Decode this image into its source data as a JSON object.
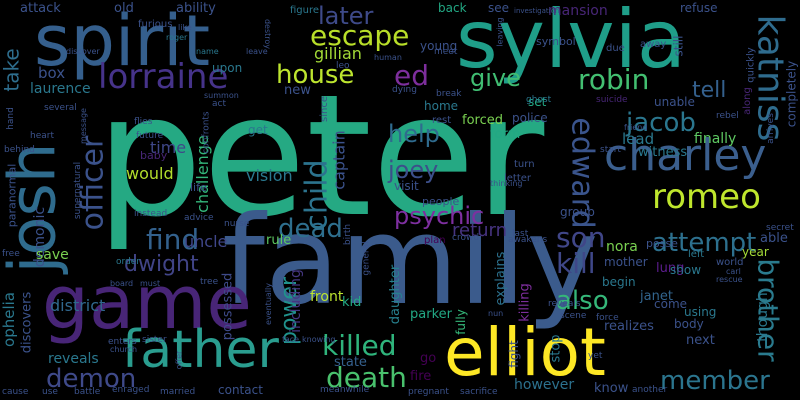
{
  "background": "#000000",
  "palette": {
    "indigo": "#482677",
    "darkblue": "#3b528b",
    "blue": "#3a5f8e",
    "teal": "#2a788e",
    "cyan": "#21918c",
    "green": "#22a884",
    "lime": "#7ad151",
    "yellow": "#fde725"
  },
  "words": [
    {
      "text": "peter",
      "color": "#25a983"
    },
    {
      "text": "family",
      "color": "#3b5b8c"
    },
    {
      "text": "sylvia",
      "color": "#1f9e89"
    },
    {
      "text": "spirit",
      "color": "#355f8d"
    },
    {
      "text": "game",
      "color": "#482577"
    },
    {
      "text": "josh",
      "color": "#2f6c8e"
    },
    {
      "text": "elliot",
      "color": "#fde725"
    },
    {
      "text": "father",
      "color": "#2a9d8f"
    },
    {
      "text": "charley",
      "color": "#3b5f8e"
    },
    {
      "text": "katniss",
      "color": "#2f6c8e"
    },
    {
      "text": "lorraine",
      "color": "#46338a"
    },
    {
      "text": "romeo",
      "color": "#bfe62d"
    },
    {
      "text": "brother",
      "color": "#2a7b8e"
    },
    {
      "text": "escape",
      "color": "#b8de29"
    },
    {
      "text": "house",
      "color": "#bde52f"
    },
    {
      "text": "robin",
      "color": "#43bf71"
    },
    {
      "text": "edward",
      "color": "#3a548c"
    },
    {
      "text": "officer",
      "color": "#3b528b"
    },
    {
      "text": "child",
      "color": "#2c738e"
    },
    {
      "text": "later",
      "color": "#3e4a89"
    },
    {
      "text": "death",
      "color": "#49c16d"
    },
    {
      "text": "killed",
      "color": "#2fb47c"
    },
    {
      "text": "son",
      "color": "#404688"
    },
    {
      "text": "kill",
      "color": "#3f4788"
    },
    {
      "text": "find",
      "color": "#33618d"
    },
    {
      "text": "dead",
      "color": "#2e6f8e"
    },
    {
      "text": "psychic",
      "color": "#7e2fa0"
    },
    {
      "text": "attempt",
      "color": "#2d708e"
    },
    {
      "text": "member",
      "color": "#2b758e"
    },
    {
      "text": "also",
      "color": "#35b779"
    },
    {
      "text": "demon",
      "color": "#3f4a8a"
    },
    {
      "text": "joey",
      "color": "#3c4f8a"
    },
    {
      "text": "jacob",
      "color": "#2a768e"
    },
    {
      "text": "help",
      "color": "#2f6b8e"
    },
    {
      "text": "give",
      "color": "#40bd72"
    },
    {
      "text": "tell",
      "color": "#34608d"
    },
    {
      "text": "dwight",
      "color": "#414487"
    },
    {
      "text": "power",
      "color": "#20928c"
    },
    {
      "text": "ed",
      "color": "#7d2e9c"
    },
    {
      "text": "gillian",
      "color": "#a3da37"
    },
    {
      "text": "take",
      "color": "#2e6e8e"
    },
    {
      "text": "vision",
      "color": "#2a788e"
    },
    {
      "text": "return",
      "color": "#46337f"
    },
    {
      "text": "district",
      "color": "#31688e"
    },
    {
      "text": "uncle",
      "color": "#40478a"
    },
    {
      "text": "challenge",
      "color": "#33b67a"
    },
    {
      "text": "captain",
      "color": "#3b528b"
    },
    {
      "text": "time",
      "color": "#3f4788"
    },
    {
      "text": "would",
      "color": "#b2dd2c"
    },
    {
      "text": "janet",
      "color": "#32658e"
    },
    {
      "text": "ophelia",
      "color": "#2a788e"
    },
    {
      "text": "demonic",
      "color": "#3b528b"
    },
    {
      "text": "reveals",
      "color": "#2a788e"
    },
    {
      "text": "possessed",
      "color": "#3e4a89"
    },
    {
      "text": "including",
      "color": "#453781"
    },
    {
      "text": "daughter",
      "color": "#27808e"
    },
    {
      "text": "explains",
      "color": "#2c718e"
    },
    {
      "text": "contact",
      "color": "#3b528b"
    },
    {
      "text": "state",
      "color": "#35608d"
    },
    {
      "text": "front",
      "color": "#bde52f"
    },
    {
      "text": "lung",
      "color": "#5d1d8f"
    },
    {
      "text": "rule",
      "color": "#5ec962"
    },
    {
      "text": "save",
      "color": "#7ad151"
    },
    {
      "text": "box",
      "color": "#3b528b"
    },
    {
      "text": "laurence",
      "color": "#2a788e"
    },
    {
      "text": "discovers",
      "color": "#3b528b"
    },
    {
      "text": "kid",
      "color": "#22a884"
    },
    {
      "text": "parker",
      "color": "#22a884"
    },
    {
      "text": "fully",
      "color": "#35b779"
    },
    {
      "text": "killing",
      "color": "#7d2e9c"
    },
    {
      "text": "stop",
      "color": "#2a788e"
    },
    {
      "text": "fight",
      "color": "#3b528b"
    },
    {
      "text": "however",
      "color": "#2c718e"
    },
    {
      "text": "know",
      "color": "#3b528b"
    },
    {
      "text": "fire",
      "color": "#440154"
    },
    {
      "text": "go",
      "color": "#440154"
    },
    {
      "text": "lead",
      "color": "#2a788e"
    },
    {
      "text": "form",
      "color": "#22a884"
    },
    {
      "text": "finally",
      "color": "#5ec962"
    },
    {
      "text": "witness",
      "color": "#2a788e"
    },
    {
      "text": "nora",
      "color": "#7ad151"
    },
    {
      "text": "mother",
      "color": "#3b528b"
    },
    {
      "text": "show",
      "color": "#2a788e"
    },
    {
      "text": "year",
      "color": "#a3da37"
    },
    {
      "text": "able",
      "color": "#3b528b"
    },
    {
      "text": "posse",
      "color": "#3b528b"
    },
    {
      "text": "left",
      "color": "#2a788e"
    },
    {
      "text": "world",
      "color": "#3b528b"
    },
    {
      "text": "begin",
      "color": "#2a788e"
    },
    {
      "text": "come",
      "color": "#3b528b"
    },
    {
      "text": "using",
      "color": "#2a788e"
    },
    {
      "text": "body",
      "color": "#3b528b"
    },
    {
      "text": "realizes",
      "color": "#3b528b"
    },
    {
      "text": "next",
      "color": "#3b528b"
    },
    {
      "text": "though",
      "color": "#2a788e"
    },
    {
      "text": "completely",
      "color": "#3b528b"
    },
    {
      "text": "refuse",
      "color": "#3b528b"
    },
    {
      "text": "mansion",
      "color": "#482677"
    },
    {
      "text": "attack",
      "color": "#3b528b"
    },
    {
      "text": "old",
      "color": "#3b528b"
    },
    {
      "text": "ability",
      "color": "#3b528b"
    },
    {
      "text": "figure",
      "color": "#2a788e"
    },
    {
      "text": "back",
      "color": "#22a884"
    },
    {
      "text": "see",
      "color": "#3b528b"
    },
    {
      "text": "upon",
      "color": "#2a788e"
    },
    {
      "text": "new",
      "color": "#3b528b"
    },
    {
      "text": "set",
      "color": "#22a884"
    },
    {
      "text": "police",
      "color": "#3b528b"
    },
    {
      "text": "forced",
      "color": "#7ad151"
    },
    {
      "text": "home",
      "color": "#2a788e"
    },
    {
      "text": "rest",
      "color": "#3b528b"
    },
    {
      "text": "unable",
      "color": "#3b528b"
    },
    {
      "text": "furious",
      "color": "#3b528b"
    },
    {
      "text": "roger",
      "color": "#2a788e"
    },
    {
      "text": "like",
      "color": "#3b528b"
    },
    {
      "text": "name",
      "color": "#2a788e"
    },
    {
      "text": "leave",
      "color": "#3b528b"
    },
    {
      "text": "discover",
      "color": "#3b528b"
    },
    {
      "text": "young",
      "color": "#3b528b"
    },
    {
      "text": "meet",
      "color": "#3b528b"
    },
    {
      "text": "due",
      "color": "#3b528b"
    },
    {
      "text": "away",
      "color": "#3b528b"
    },
    {
      "text": "still",
      "color": "#3b528b"
    },
    {
      "text": "symbol",
      "color": "#3b528b"
    },
    {
      "text": "ghost",
      "color": "#2a788e"
    },
    {
      "text": "dying",
      "color": "#3b528b"
    },
    {
      "text": "break",
      "color": "#3b528b"
    },
    {
      "text": "suicide",
      "color": "#482677"
    },
    {
      "text": "along",
      "color": "#482677"
    },
    {
      "text": "quickly",
      "color": "#3b528b"
    },
    {
      "text": "visit",
      "color": "#3b528b"
    },
    {
      "text": "people",
      "color": "#3b528b"
    },
    {
      "text": "plan",
      "color": "#440154"
    },
    {
      "text": "thinking",
      "color": "#3b528b"
    },
    {
      "text": "turn",
      "color": "#3b528b"
    },
    {
      "text": "letter",
      "color": "#3b528b"
    },
    {
      "text": "group",
      "color": "#3b528b"
    },
    {
      "text": "awakens",
      "color": "#3b528b"
    },
    {
      "text": "last",
      "color": "#3b528b"
    },
    {
      "text": "instead",
      "color": "#3b528b"
    },
    {
      "text": "advice",
      "color": "#3b528b"
    },
    {
      "text": "nurse",
      "color": "#3b528b"
    },
    {
      "text": "general",
      "color": "#3b528b"
    },
    {
      "text": "birth",
      "color": "#3b528b"
    },
    {
      "text": "life",
      "color": "#3b528b"
    },
    {
      "text": "baby",
      "color": "#482677"
    },
    {
      "text": "since",
      "color": "#3b528b"
    },
    {
      "text": "get",
      "color": "#2a788e"
    },
    {
      "text": "several",
      "color": "#3b528b"
    },
    {
      "text": "paranormal",
      "color": "#3b528b"
    },
    {
      "text": "heart",
      "color": "#3b528b"
    },
    {
      "text": "supernatural",
      "color": "#3b528b"
    },
    {
      "text": "message",
      "color": "#3b528b"
    },
    {
      "text": "future",
      "color": "#3b528b"
    },
    {
      "text": "flies",
      "color": "#3b528b"
    },
    {
      "text": "confronts",
      "color": "#3b528b"
    },
    {
      "text": "summon",
      "color": "#3b528b"
    },
    {
      "text": "act",
      "color": "#3b528b"
    },
    {
      "text": "destroy",
      "color": "#3b528b"
    },
    {
      "text": "human",
      "color": "#3b528b"
    },
    {
      "text": "leo",
      "color": "#3b528b"
    },
    {
      "text": "order",
      "color": "#2a788e"
    },
    {
      "text": "free",
      "color": "#3b528b"
    },
    {
      "text": "board",
      "color": "#3b528b"
    },
    {
      "text": "must",
      "color": "#3b528b"
    },
    {
      "text": "tree",
      "color": "#3b528b"
    },
    {
      "text": "enters",
      "color": "#3b528b"
    },
    {
      "text": "sister",
      "color": "#3b528b"
    },
    {
      "text": "church",
      "color": "#3b528b"
    },
    {
      "text": "face",
      "color": "#3b528b"
    },
    {
      "text": "knowing",
      "color": "#3b528b"
    },
    {
      "text": "eventually",
      "color": "#3b528b"
    },
    {
      "text": "meanwhile",
      "color": "#3b528b"
    },
    {
      "text": "battle",
      "color": "#3b528b"
    },
    {
      "text": "enraged",
      "color": "#3b528b"
    },
    {
      "text": "married",
      "color": "#3b528b"
    },
    {
      "text": "offer",
      "color": "#3b528b"
    },
    {
      "text": "cause",
      "color": "#3b528b"
    },
    {
      "text": "use",
      "color": "#3b528b"
    },
    {
      "text": "pregnant",
      "color": "#3b528b"
    },
    {
      "text": "sacrifice",
      "color": "#3b528b"
    },
    {
      "text": "another",
      "color": "#3b528b"
    },
    {
      "text": "yet",
      "color": "#3b528b"
    },
    {
      "text": "scene",
      "color": "#3b528b"
    },
    {
      "text": "force",
      "color": "#3b528b"
    },
    {
      "text": "nun",
      "color": "#3b528b"
    },
    {
      "text": "friend",
      "color": "#3b528b"
    },
    {
      "text": "rebel",
      "color": "#3b528b"
    },
    {
      "text": "arrives",
      "color": "#3b528b"
    },
    {
      "text": "reveals",
      "color": "#3b528b"
    },
    {
      "text": "start",
      "color": "#3b528b"
    },
    {
      "text": "secret",
      "color": "#3b528b"
    },
    {
      "text": "carl",
      "color": "#3b528b"
    },
    {
      "text": "rescue",
      "color": "#3b528b"
    },
    {
      "text": "crowd",
      "color": "#3b528b"
    },
    {
      "text": "investigation",
      "color": "#3b528b"
    },
    {
      "text": "leaving",
      "color": "#3b528b"
    },
    {
      "text": "hand",
      "color": "#3b528b"
    },
    {
      "text": "behind",
      "color": "#3b528b"
    }
  ]
}
